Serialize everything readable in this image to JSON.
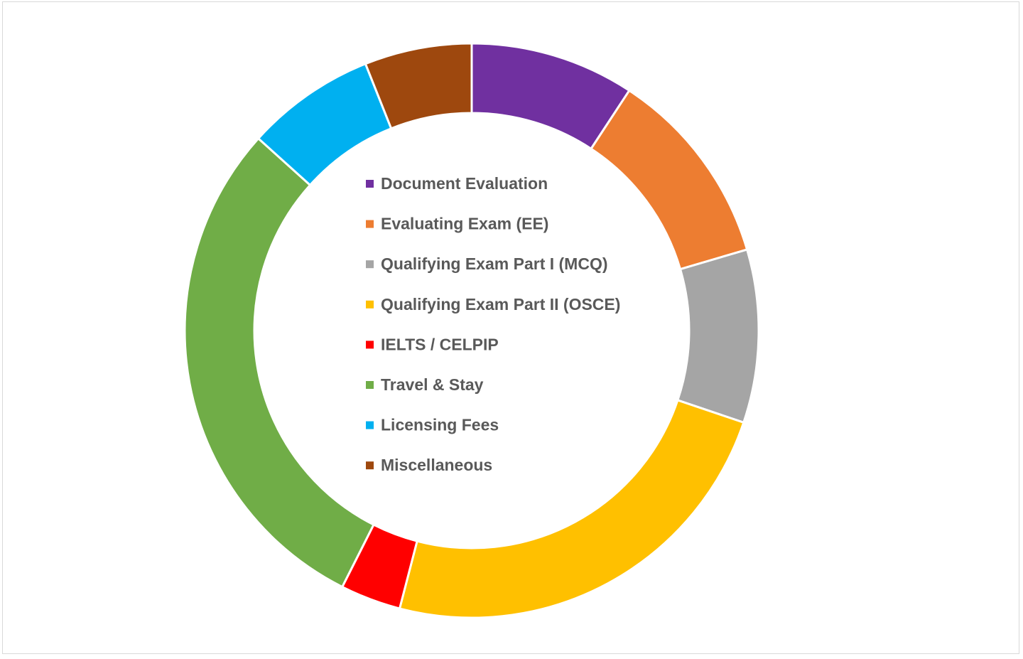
{
  "chart_data": {
    "type": "pie",
    "donut": true,
    "title": "",
    "legend_position": "center",
    "categories": [
      "Document Evaluation",
      "Evaluating Exam (EE)",
      "Qualifying Exam Part I (MCQ)",
      "Qualifying Exam Part II (OSCE)",
      "IELTS / CELPIP",
      "Travel & Stay",
      "Licensing Fees",
      "Miscellaneous"
    ],
    "values": [
      9.5,
      11.5,
      10.0,
      24.5,
      3.5,
      30.0,
      7.5,
      6.2
    ],
    "colors": [
      "#7030A0",
      "#ED7D31",
      "#A5A5A5",
      "#FFC000",
      "#FF0000",
      "#70AD47",
      "#00B0F0",
      "#9E480E"
    ]
  }
}
